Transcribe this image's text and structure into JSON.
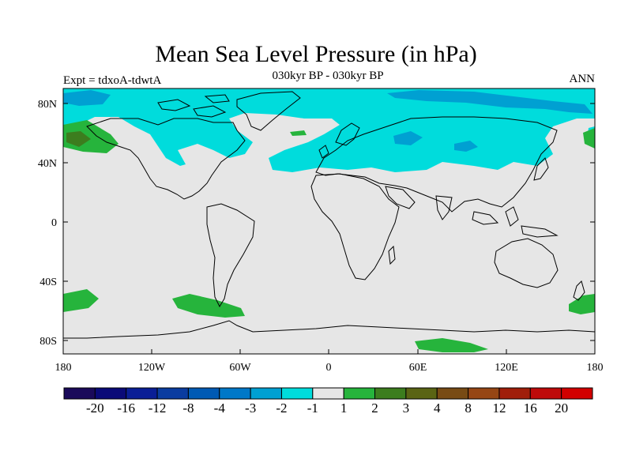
{
  "title": "Mean Sea Level Pressure (in hPa)",
  "subtitle": "030kyr BP - 030kyr BP",
  "left_label": "Expt = tdxoA-tdwtA",
  "right_label": "ANN",
  "colors": {
    "background_field": "#e6e6e6",
    "neg_light": "#00dcdc",
    "neg_medium": "#00a0d2",
    "pos_light": "#26b43c",
    "pos_medium": "#3c7d1e",
    "pos_dark": "#5a6414",
    "coastline": "#000000"
  },
  "axes": {
    "lat_ticks": [
      "80N",
      "40N",
      "0",
      "40S",
      "80S"
    ],
    "lon_ticks": [
      "180",
      "120W",
      "60W",
      "0",
      "60E",
      "120E",
      "180"
    ]
  },
  "colorbar": {
    "colors": [
      "#1a0a5a",
      "#0a0a78",
      "#0a1e96",
      "#0a3ca0",
      "#005ab4",
      "#0078c8",
      "#00a0d2",
      "#00dcdc",
      "#e6e6e6",
      "#26b43c",
      "#3c7d1e",
      "#5a6414",
      "#784b14",
      "#964614",
      "#a01e0a",
      "#be0a0a",
      "#d20000"
    ],
    "labels": [
      "-20",
      "-16",
      "-12",
      "-8",
      "-4",
      "-3",
      "-2",
      "-1",
      "1",
      "2",
      "3",
      "4",
      "8",
      "12",
      "16",
      "20"
    ]
  }
}
